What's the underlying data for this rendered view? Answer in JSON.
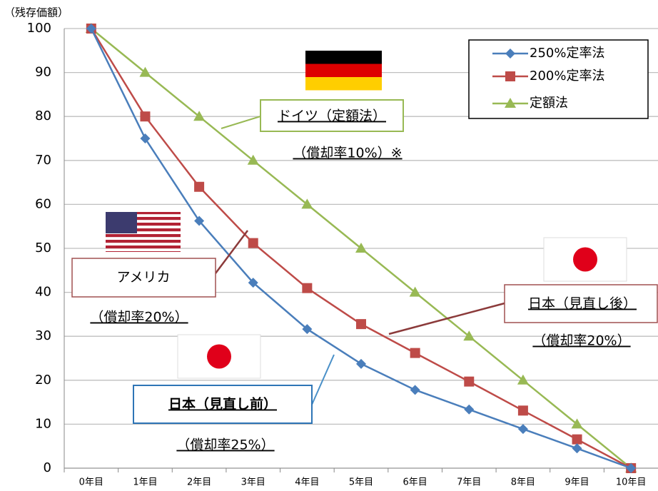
{
  "chart_data": {
    "type": "line",
    "y_axis_label": "（残存価額）",
    "categories": [
      "0年目",
      "1年目",
      "2年目",
      "3年目",
      "4年目",
      "5年目",
      "6年目",
      "7年目",
      "8年目",
      "9年目",
      "10年目"
    ],
    "series": [
      {
        "name": "250%定率法",
        "color": "#4a7ebb",
        "marker": "diamond",
        "values": [
          100,
          75,
          56.25,
          42.19,
          31.64,
          23.73,
          17.8,
          13.35,
          8.9,
          4.5,
          0
        ]
      },
      {
        "name": "200%定率法",
        "color": "#be4b48",
        "marker": "square",
        "values": [
          100,
          80,
          64,
          51.2,
          40.96,
          32.77,
          26.2,
          19.7,
          13.1,
          6.55,
          0
        ]
      },
      {
        "name": "定額法",
        "color": "#98b954",
        "marker": "triangle",
        "values": [
          100,
          90,
          80,
          70,
          60,
          50,
          40,
          30,
          20,
          10,
          0
        ]
      }
    ],
    "ylim": [
      0,
      100
    ],
    "yticks": [
      0,
      10,
      20,
      30,
      40,
      50,
      60,
      70,
      80,
      90,
      100
    ],
    "grid": true,
    "legend": "upper right",
    "annotations": [
      "ドイツ（定額法）",
      "（償却率10%）※",
      "アメリカ",
      "（償却率20%）",
      "日本（見直し前）",
      "（償却率25%）",
      "日本（見直し後）",
      "（償却率20%）"
    ]
  }
}
